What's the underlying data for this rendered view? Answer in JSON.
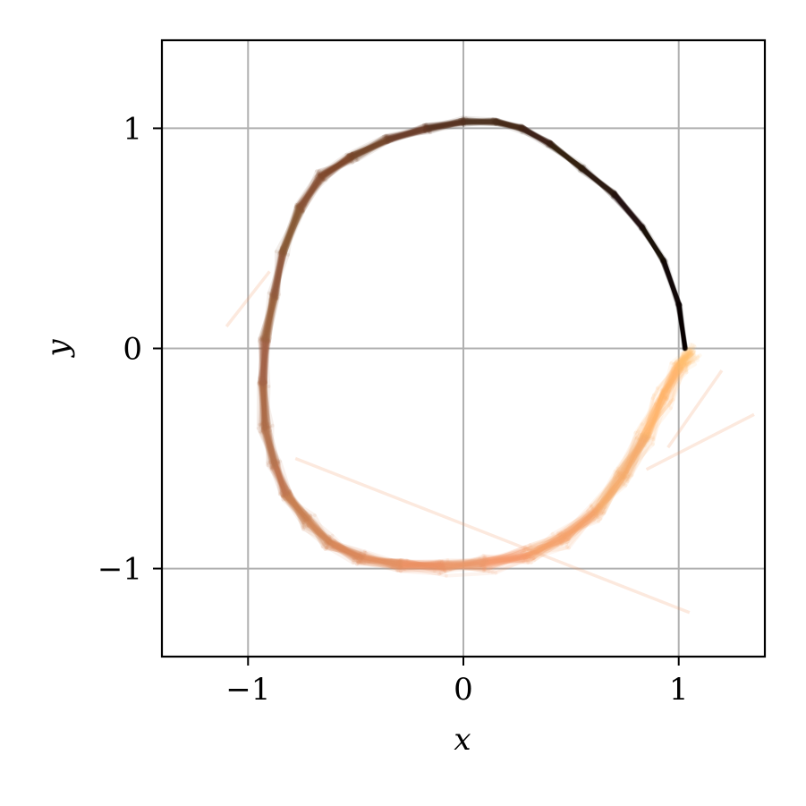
{
  "chart_data": {
    "type": "line",
    "title": "",
    "xlabel": "x",
    "ylabel": "y",
    "xlim": [
      -1.4,
      1.4
    ],
    "ylim": [
      -1.4,
      1.4
    ],
    "xticks": [
      {
        "value": -1,
        "label": "−1"
      },
      {
        "value": 0,
        "label": "0"
      },
      {
        "value": 1,
        "label": "1"
      }
    ],
    "yticks": [
      {
        "value": -1,
        "label": "−1"
      },
      {
        "value": 0,
        "label": "0"
      },
      {
        "value": 1,
        "label": "1"
      }
    ],
    "grid": true,
    "colors": {
      "start": "#000000",
      "mid": "#7a4a30",
      "late": "#f09a6a",
      "end": "#ffbf6e",
      "grid": "#b0b0b0"
    },
    "mean_trajectory": {
      "x": [
        1.03,
        1.0,
        0.93,
        0.83,
        0.7,
        0.55,
        0.4,
        0.27,
        0.15,
        0.0,
        -0.17,
        -0.35,
        -0.52,
        -0.66,
        -0.76,
        -0.84,
        -0.88,
        -0.92,
        -0.93,
        -0.92,
        -0.88,
        -0.82,
        -0.73,
        -0.62,
        -0.48,
        -0.3,
        -0.1,
        0.1,
        0.3,
        0.47,
        0.62,
        0.74,
        0.84,
        0.93,
        1.0,
        1.05
      ],
      "y": [
        0.0,
        0.2,
        0.4,
        0.55,
        0.7,
        0.82,
        0.93,
        1.0,
        1.03,
        1.03,
        1.0,
        0.95,
        0.87,
        0.78,
        0.64,
        0.44,
        0.24,
        0.04,
        -0.16,
        -0.36,
        -0.52,
        -0.66,
        -0.78,
        -0.88,
        -0.95,
        -0.98,
        -0.99,
        -0.98,
        -0.94,
        -0.86,
        -0.74,
        -0.58,
        -0.4,
        -0.22,
        -0.08,
        -0.02
      ]
    },
    "outlier_segments": [
      {
        "x": [
          -0.78,
          1.05
        ],
        "y": [
          -0.5,
          -1.2
        ]
      },
      {
        "x": [
          0.85,
          1.35
        ],
        "y": [
          -0.55,
          -0.3
        ]
      },
      {
        "x": [
          0.95,
          1.2
        ],
        "y": [
          -0.45,
          -0.1
        ]
      },
      {
        "x": [
          -1.1,
          -0.9
        ],
        "y": [
          0.1,
          0.35
        ]
      }
    ],
    "ensemble_count": 60
  }
}
